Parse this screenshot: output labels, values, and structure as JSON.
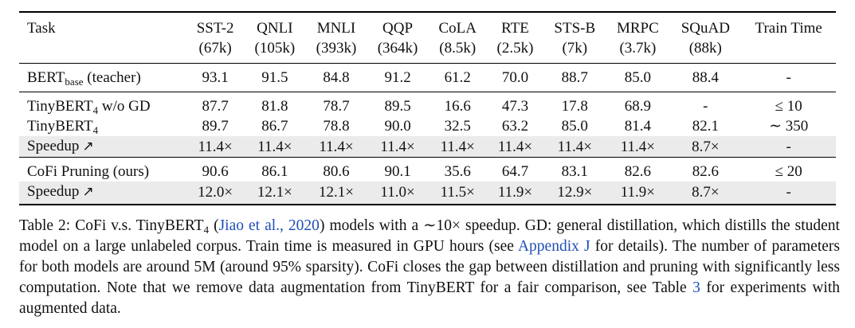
{
  "table": {
    "header_top": [
      "Task",
      "SST-2",
      "QNLI",
      "MNLI",
      "QQP",
      "CoLA",
      "RTE",
      "STS-B",
      "MRPC",
      "SQuAD",
      "Train Time"
    ],
    "header_sub": [
      "",
      "(67k)",
      "(105k)",
      "(393k)",
      "(364k)",
      "(8.5k)",
      "(2.5k)",
      "(7k)",
      "(3.7k)",
      "(88k)",
      ""
    ],
    "teacher": {
      "label_main": "BERT",
      "label_sub": "base",
      "label_tail": " (teacher)",
      "cells": [
        "93.1",
        "91.5",
        "84.8",
        "91.2",
        "61.2",
        "70.0",
        "88.7",
        "85.0",
        "88.4",
        "-"
      ]
    },
    "rows": [
      {
        "label_main": "TinyBERT",
        "label_sub": "4",
        "label_tail": " w/o GD",
        "cells": [
          "87.7",
          "81.8",
          "78.7",
          "89.5",
          "16.6",
          "47.3",
          "17.8",
          "68.9",
          "-",
          "≤ 10"
        ],
        "bold": []
      },
      {
        "label_main": "TinyBERT",
        "label_sub": "4",
        "label_tail": "",
        "cells": [
          "89.7",
          "86.7",
          "78.8",
          "90.0",
          "32.5",
          "63.2",
          "85.0",
          "81.4",
          "82.1",
          "∼ 350"
        ],
        "bold": [
          1,
          6
        ]
      },
      {
        "label_main": "Speedup",
        "label_sub": "",
        "label_tail": "",
        "cells": [
          "11.4×",
          "11.4×",
          "11.4×",
          "11.4×",
          "11.4×",
          "11.4×",
          "11.4×",
          "11.4×",
          "8.7×",
          "-"
        ],
        "bold": [],
        "shaded": true,
        "arrow": "↗"
      },
      {
        "label_main": "CoFi Pruning (ours)",
        "label_sub": "",
        "label_tail": "",
        "cells": [
          "90.6",
          "86.1",
          "80.6",
          "90.1",
          "35.6",
          "64.7",
          "83.1",
          "82.6",
          "82.6",
          "≤ 20"
        ],
        "bold": [
          0,
          2,
          3,
          4,
          5,
          7,
          8
        ],
        "separator": true
      },
      {
        "label_main": "Speedup",
        "label_sub": "",
        "label_tail": "",
        "cells": [
          "12.0×",
          "12.1×",
          "12.1×",
          "11.0×",
          "11.5×",
          "11.9×",
          "12.9×",
          "11.9×",
          "8.7×",
          "-"
        ],
        "bold": [],
        "shaded": true,
        "arrow": "↗",
        "last": true
      }
    ]
  },
  "caption": {
    "p1": "Table 2: CoFi v.s. TinyBERT",
    "p1_sub": "4",
    "p2": " (",
    "cite": "Jiao et al., 2020",
    "p3": ") models with a ∼10× speedup. GD: general distillation, which distills the student model on a large unlabeled corpus. Train time is measured in GPU hours (see ",
    "appendix": "Appendix J",
    "p4": " for details). The number of parameters for both models are around 5M (around 95% sparsity). CoFi closes the gap between distillation and pruning with significantly less computation. Note that we remove data augmentation from TinyBERT for a fair comparison, see Table ",
    "table_ref": "3",
    "p5": " for experiments with augmented data."
  },
  "colors": {
    "link": "#1f4fb5",
    "shade": "#ebebeb"
  }
}
